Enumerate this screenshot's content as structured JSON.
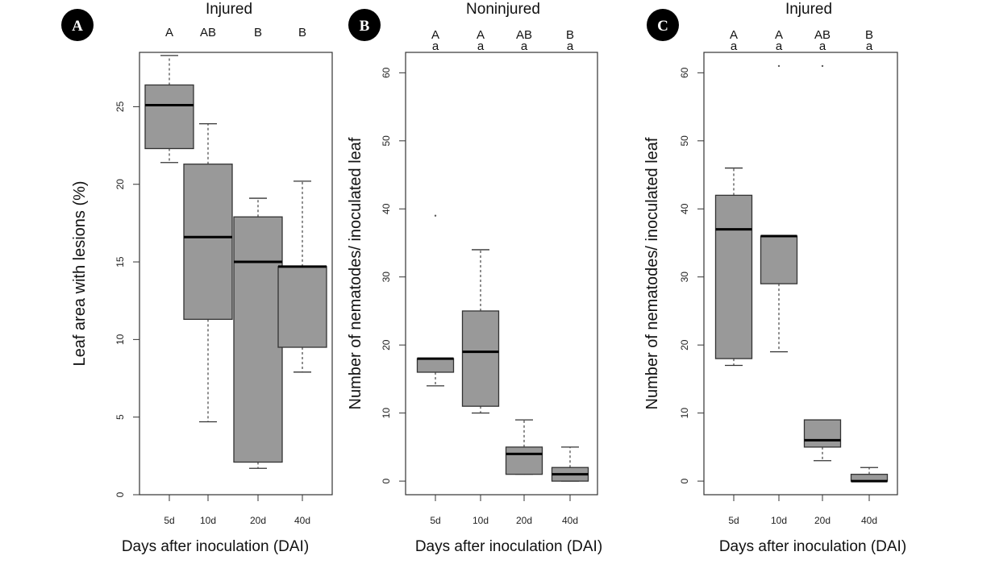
{
  "chart_data": [
    {
      "type": "box",
      "panel": "A",
      "title": "Injured",
      "xlabel": "Days after inoculation (DAI)",
      "ylabel": "Leaf area with lesions (%)",
      "ylim": [
        0,
        28.5
      ],
      "yticks": [
        0,
        5,
        10,
        15,
        20,
        25
      ],
      "categories": [
        "5d",
        "10d",
        "20d",
        "40d"
      ],
      "significance": [
        [
          "A"
        ],
        [
          "AB"
        ],
        [
          "B"
        ],
        [
          "B"
        ]
      ],
      "boxes": [
        {
          "category": "5d",
          "min": 21.4,
          "q1": 22.3,
          "median": 25.1,
          "q3": 26.4,
          "max": 28.3,
          "outliers": []
        },
        {
          "category": "10d",
          "min": 4.7,
          "q1": 11.3,
          "median": 16.6,
          "q3": 21.3,
          "max": 23.9,
          "outliers": []
        },
        {
          "category": "20d",
          "min": 1.7,
          "q1": 2.1,
          "median": 15.0,
          "q3": 17.9,
          "max": 19.1,
          "outliers": []
        },
        {
          "category": "40d",
          "min": 7.9,
          "q1": 9.5,
          "median": 14.7,
          "q3": 14.7,
          "max": 20.2,
          "outliers": []
        }
      ]
    },
    {
      "type": "box",
      "panel": "B",
      "title": "Noninjured",
      "xlabel": "Days after inoculation (DAI)",
      "ylabel": "Number of nematodes/ inoculated leaf",
      "ylim": [
        -2,
        63
      ],
      "yticks": [
        0,
        10,
        20,
        30,
        40,
        50,
        60
      ],
      "categories": [
        "5d",
        "10d",
        "20d",
        "40d"
      ],
      "significance": [
        [
          "A",
          "a"
        ],
        [
          "A",
          "a"
        ],
        [
          "AB",
          "a"
        ],
        [
          "B",
          "a"
        ]
      ],
      "boxes": [
        {
          "category": "5d",
          "min": 14,
          "q1": 16,
          "median": 18,
          "q3": 18,
          "max": 18,
          "outliers": [
            39
          ]
        },
        {
          "category": "10d",
          "min": 10,
          "q1": 11,
          "median": 19,
          "q3": 25,
          "max": 34,
          "outliers": []
        },
        {
          "category": "20d",
          "min": 1,
          "q1": 1,
          "median": 4,
          "q3": 5,
          "max": 9,
          "outliers": []
        },
        {
          "category": "40d",
          "min": 0,
          "q1": 0,
          "median": 1,
          "q3": 2,
          "max": 5,
          "outliers": []
        }
      ]
    },
    {
      "type": "box",
      "panel": "C",
      "title": "Injured",
      "xlabel": "Days after inoculation (DAI)",
      "ylabel": "Number of nematodes/ inoculated leaf",
      "ylim": [
        -2,
        63
      ],
      "yticks": [
        0,
        10,
        20,
        30,
        40,
        50,
        60
      ],
      "categories": [
        "5d",
        "10d",
        "20d",
        "40d"
      ],
      "significance": [
        [
          "A",
          "a"
        ],
        [
          "A",
          "a"
        ],
        [
          "AB",
          "a"
        ],
        [
          "B",
          "a"
        ]
      ],
      "boxes": [
        {
          "category": "5d",
          "min": 17,
          "q1": 18,
          "median": 37,
          "q3": 42,
          "max": 46,
          "outliers": []
        },
        {
          "category": "10d",
          "min": 19,
          "q1": 29,
          "median": 36,
          "q3": 36,
          "max": 36,
          "outliers": [
            61
          ]
        },
        {
          "category": "20d",
          "min": 3,
          "q1": 5,
          "median": 6,
          "q3": 9,
          "max": 9,
          "outliers": [
            61
          ]
        },
        {
          "category": "40d",
          "min": 0,
          "q1": 0,
          "median": 0,
          "q3": 1,
          "max": 2,
          "outliers": []
        }
      ]
    }
  ]
}
